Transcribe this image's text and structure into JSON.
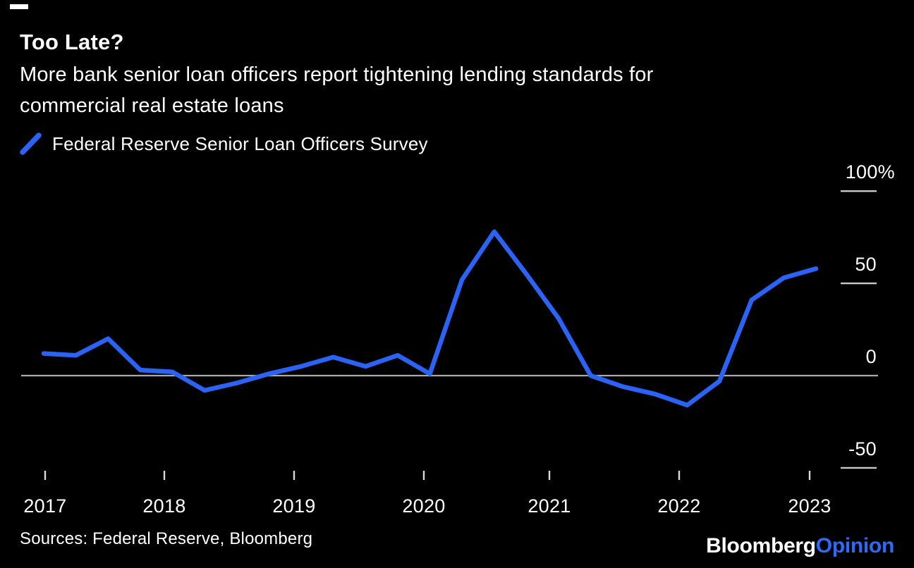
{
  "header": {
    "title": "Too Late?",
    "subtitle_lines": [
      "More bank senior loan officers report tightening lending standards for",
      "commercial real estate loans"
    ]
  },
  "legend": {
    "label": "Federal Reserve Senior Loan Officers Survey",
    "mark": "blue-diagonal-line"
  },
  "chart_data": {
    "type": "line",
    "title": "Too Late?",
    "subtitle": "More bank senior loan officers report tightening lending standards for commercial real estate loans",
    "unit": "net percent of banks tightening standards (%)",
    "grid": "none",
    "zero_baseline": true,
    "legend_position": "top-left",
    "y_axis": {
      "side": "right",
      "range": [
        -62,
        112
      ],
      "ticks": [
        {
          "value": 100,
          "label": "100%"
        },
        {
          "value": 50,
          "label": "50"
        },
        {
          "value": 0,
          "label": "0"
        },
        {
          "value": -50,
          "label": "-50"
        }
      ]
    },
    "x_axis": {
      "ticks": [
        {
          "value": 2017,
          "label": "2017"
        },
        {
          "value": 2018,
          "label": "2018"
        },
        {
          "value": 2019,
          "label": "2019"
        },
        {
          "value": 2020,
          "label": "2020"
        },
        {
          "value": 2021,
          "label": "2021"
        },
        {
          "value": 2022,
          "label": "2022"
        },
        {
          "value": 2023,
          "label": "2023"
        }
      ]
    },
    "series": [
      {
        "name": "Federal Reserve Senior Loan Officers Survey",
        "color": "#2A63F5",
        "points": [
          {
            "x": 2017.0,
            "y": 12
          },
          {
            "x": 2017.25,
            "y": 11
          },
          {
            "x": 2017.5,
            "y": 20
          },
          {
            "x": 2017.75,
            "y": 3
          },
          {
            "x": 2018.0,
            "y": 2
          },
          {
            "x": 2018.25,
            "y": -8
          },
          {
            "x": 2018.5,
            "y": -4
          },
          {
            "x": 2018.75,
            "y": 1
          },
          {
            "x": 2019.0,
            "y": 5
          },
          {
            "x": 2019.25,
            "y": 10
          },
          {
            "x": 2019.5,
            "y": 5
          },
          {
            "x": 2019.75,
            "y": 11
          },
          {
            "x": 2020.0,
            "y": 1
          },
          {
            "x": 2020.25,
            "y": 52
          },
          {
            "x": 2020.5,
            "y": 78
          },
          {
            "x": 2020.75,
            "y": 55
          },
          {
            "x": 2021.0,
            "y": 31
          },
          {
            "x": 2021.25,
            "y": 0
          },
          {
            "x": 2021.5,
            "y": -6
          },
          {
            "x": 2021.75,
            "y": -10
          },
          {
            "x": 2022.0,
            "y": -16
          },
          {
            "x": 2022.25,
            "y": -3
          },
          {
            "x": 2022.5,
            "y": 41
          },
          {
            "x": 2022.75,
            "y": 53
          },
          {
            "x": 2023.0,
            "y": 58
          }
        ]
      }
    ]
  },
  "footer": {
    "sources": "Sources: Federal Reserve, Bloomberg"
  },
  "logo": {
    "bloomberg": "Bloomberg",
    "opinion": "Opinion"
  },
  "colors": {
    "background": "#000000",
    "text": "#FFFFFF",
    "accent_blue": "#2A63F5",
    "brand_blue": "#2E6BF5",
    "zero_line": "#A9A9A9",
    "tick_gray": "#C9C9C9",
    "x_tick_gray": "#DADADA"
  }
}
